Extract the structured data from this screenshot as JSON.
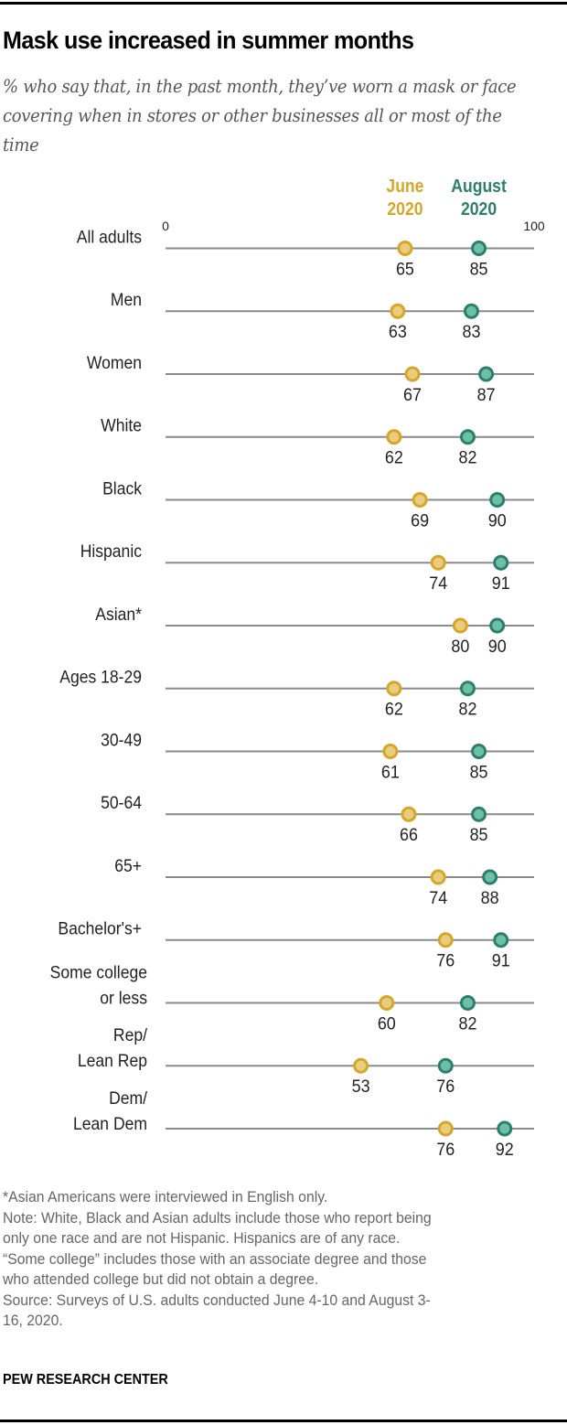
{
  "title": "Mask use increased in summer months",
  "subtitle": "% who say that, in the past month, they’ve worn a mask or face covering when in stores or other businesses all or most of the time",
  "chart_data": {
    "type": "dot-plot",
    "title": "Mask use increased in summer months",
    "xlim": [
      0,
      100
    ],
    "axis_ticks": [
      "0",
      "100"
    ],
    "series": [
      {
        "name": "June 2020",
        "label_lines": [
          "June",
          "2020"
        ],
        "color": "#D6A62A",
        "fill": "#E8CD7E",
        "values": [
          65,
          63,
          67,
          62,
          69,
          74,
          80,
          62,
          61,
          66,
          74,
          76,
          60,
          53,
          76
        ]
      },
      {
        "name": "August 2020",
        "label_lines": [
          "August",
          "2020"
        ],
        "color": "#2D7F6C",
        "fill": "#6CC0A8",
        "values": [
          85,
          83,
          87,
          82,
          90,
          91,
          90,
          82,
          85,
          85,
          88,
          91,
          82,
          76,
          92
        ]
      }
    ],
    "categories": [
      [
        "All adults"
      ],
      [
        "Men"
      ],
      [
        "Women"
      ],
      [
        "White"
      ],
      [
        "Black"
      ],
      [
        "Hispanic"
      ],
      [
        "Asian*"
      ],
      [
        "Ages 18-29"
      ],
      [
        "30-49"
      ],
      [
        "50-64"
      ],
      [
        "65+"
      ],
      [
        "Bachelor's+"
      ],
      [
        "Some college",
        "or less"
      ],
      [
        "Rep/",
        "Lean Rep"
      ],
      [
        "Dem/",
        "Lean Dem"
      ]
    ]
  },
  "notes": {
    "footnote": "*Asian Americans were interviewed in English only.",
    "note_lines": [
      "Note: White, Black and Asian adults include those who report being",
      "only one race and are not Hispanic. Hispanics are of any race.",
      "“Some college” includes those with an associate degree and those",
      "who attended college but did not obtain a degree."
    ],
    "source_lines": [
      "Source: Surveys of U.S. adults conducted June 4-10 and August 3-",
      "16, 2020."
    ]
  },
  "brand": "PEW RESEARCH CENTER"
}
